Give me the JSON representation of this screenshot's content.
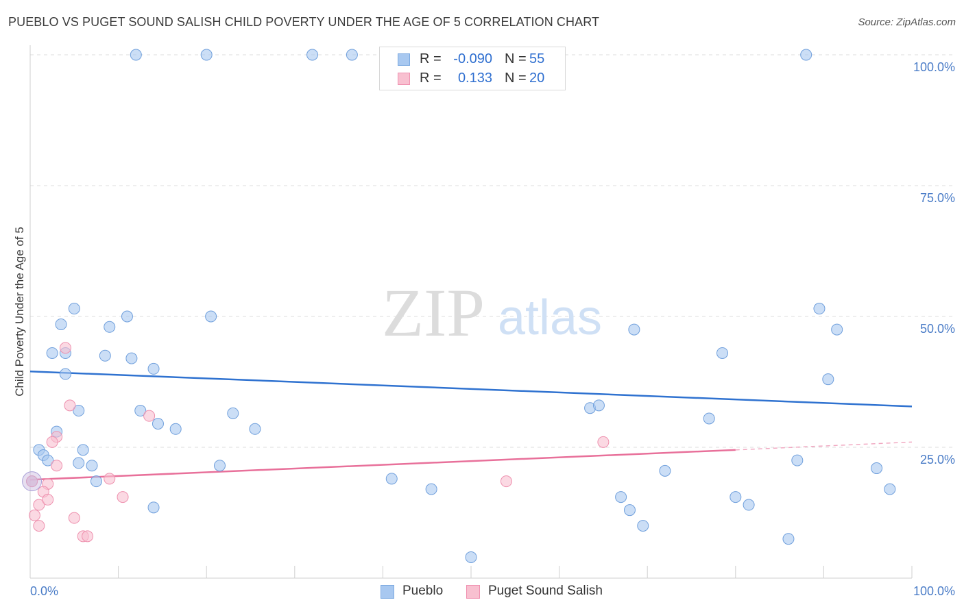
{
  "header": {
    "title": "PUEBLO VS PUGET SOUND SALISH CHILD POVERTY UNDER THE AGE OF 5 CORRELATION CHART",
    "source": "Source: ZipAtlas.com"
  },
  "watermark": {
    "zip": "ZIP",
    "atlas": "atlas"
  },
  "legend": {
    "rows": [
      {
        "r_label": "R =",
        "r_value": "-0.090",
        "n_label": "N =",
        "n_value": "55",
        "color": "#a8c8f0",
        "border": "#7aa8e0"
      },
      {
        "r_label": "R =",
        "r_value": "0.133",
        "n_label": "N =",
        "n_value": "20",
        "color": "#f8c0d0",
        "border": "#f090b0"
      }
    ]
  },
  "bottom_legend": {
    "items": [
      {
        "label": "Pueblo",
        "color": "#a8c8f0",
        "border": "#7aa8e0"
      },
      {
        "label": "Puget Sound Salish",
        "color": "#f8c0d0",
        "border": "#f090b0"
      }
    ]
  },
  "chart_data": {
    "type": "scatter",
    "title": "PUEBLO VS PUGET SOUND SALISH CHILD POVERTY UNDER THE AGE OF 5 CORRELATION CHART",
    "ylabel": "Child Poverty Under the Age of 5",
    "xlabel": "",
    "xlim": [
      0,
      100
    ],
    "ylim": [
      0,
      100
    ],
    "x_tick_labels": [
      "0.0%",
      "100.0%"
    ],
    "y_ticks": [
      25,
      50,
      75,
      100
    ],
    "y_tick_labels": [
      "25.0%",
      "50.0%",
      "75.0%",
      "100.0%"
    ],
    "grid": true,
    "legend_position": "top-center",
    "series": [
      {
        "name": "Pueblo",
        "color": "#a8c8f0",
        "stroke": "#6f9fdc",
        "line_color": "#2f72d0",
        "trend": {
          "x": [
            0,
            100
          ],
          "y": [
            39.5,
            32.8
          ]
        },
        "points": [
          [
            12,
            100
          ],
          [
            20,
            100
          ],
          [
            32,
            100
          ],
          [
            36.5,
            100
          ],
          [
            43.5,
            100
          ],
          [
            88,
            100
          ],
          [
            5,
            51.5
          ],
          [
            3.5,
            48.5
          ],
          [
            9,
            48
          ],
          [
            11,
            50
          ],
          [
            20.5,
            50
          ],
          [
            2.5,
            43
          ],
          [
            4,
            43
          ],
          [
            8.5,
            42.5
          ],
          [
            11.5,
            42
          ],
          [
            14,
            40
          ],
          [
            4,
            39
          ],
          [
            5.5,
            32
          ],
          [
            12.5,
            32
          ],
          [
            23,
            31.5
          ],
          [
            14.5,
            29.5
          ],
          [
            16.5,
            28.5
          ],
          [
            3,
            28
          ],
          [
            25.5,
            28.5
          ],
          [
            1,
            24.5
          ],
          [
            1.5,
            23.5
          ],
          [
            2,
            22.5
          ],
          [
            6,
            24.5
          ],
          [
            5.5,
            22
          ],
          [
            7,
            21.5
          ],
          [
            21.5,
            21.5
          ],
          [
            7.5,
            18.5
          ],
          [
            14,
            13.5
          ],
          [
            41,
            19
          ],
          [
            45.5,
            17
          ],
          [
            50,
            4
          ],
          [
            63.5,
            32.5
          ],
          [
            64.5,
            33
          ],
          [
            67,
            15.5
          ],
          [
            68,
            13
          ],
          [
            69.5,
            10
          ],
          [
            68.5,
            47.5
          ],
          [
            72,
            20.5
          ],
          [
            77,
            30.5
          ],
          [
            80,
            15.5
          ],
          [
            81.5,
            14
          ],
          [
            78.5,
            43
          ],
          [
            86,
            7.5
          ],
          [
            87,
            22.5
          ],
          [
            89.5,
            51.5
          ],
          [
            90.5,
            38
          ],
          [
            91.5,
            47.5
          ],
          [
            96,
            21
          ],
          [
            97.5,
            17
          ],
          [
            0.2,
            18.5
          ]
        ]
      },
      {
        "name": "Puget Sound Salish",
        "color": "#f8c0d0",
        "stroke": "#ee90ae",
        "line_color": "#e8709a",
        "trend": {
          "x": [
            0,
            80
          ],
          "y": [
            18.8,
            24.5
          ]
        },
        "trend_dashed": {
          "x": [
            80,
            100
          ],
          "y": [
            24.5,
            26
          ]
        },
        "points": [
          [
            4,
            44
          ],
          [
            4.5,
            33
          ],
          [
            13.5,
            31
          ],
          [
            3,
            27
          ],
          [
            2.5,
            26
          ],
          [
            3,
            21.5
          ],
          [
            2,
            18
          ],
          [
            1.5,
            16.5
          ],
          [
            1,
            14
          ],
          [
            2,
            15
          ],
          [
            0.5,
            12
          ],
          [
            1,
            10
          ],
          [
            5,
            11.5
          ],
          [
            6,
            8
          ],
          [
            6.5,
            8
          ],
          [
            9,
            19
          ],
          [
            10.5,
            15.5
          ],
          [
            54,
            18.5
          ],
          [
            65,
            26
          ],
          [
            0.2,
            18.5
          ]
        ]
      }
    ]
  }
}
